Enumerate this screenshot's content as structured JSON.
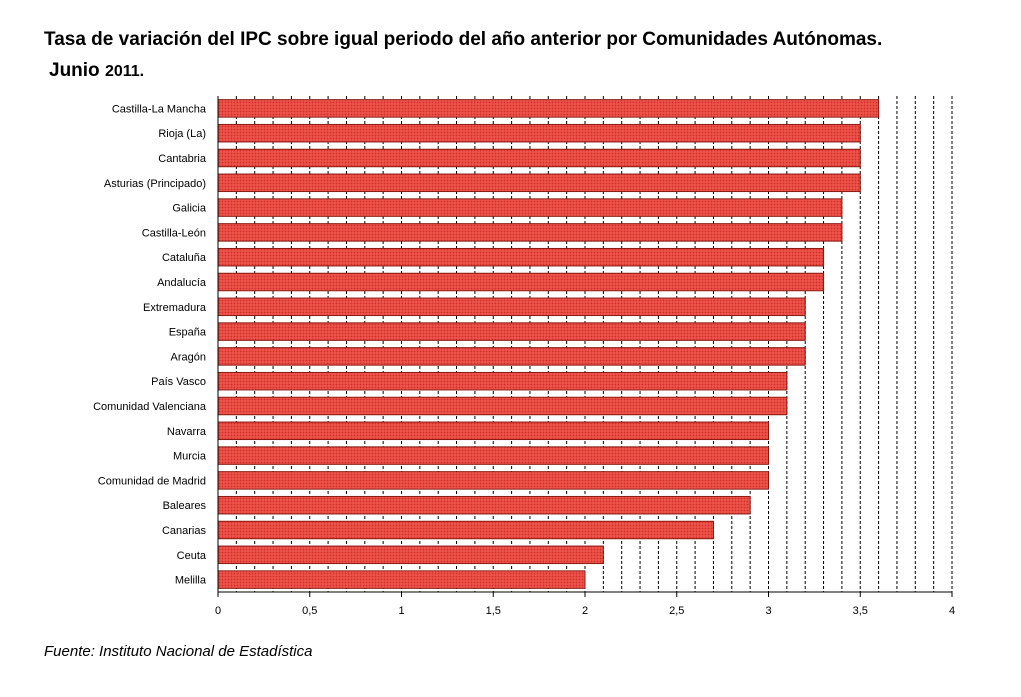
{
  "title": {
    "line1": "Tasa de variación del IPC sobre igual periodo del año anterior por Comunidades Autónomas.",
    "line2_main": "Junio",
    "line2_year": "2011."
  },
  "source": "Fuente: Instituto Nacional de Estadística",
  "chart_data": {
    "type": "bar",
    "orientation": "horizontal",
    "categories": [
      "Castilla-La Mancha",
      "Rioja (La)",
      "Cantabria",
      "Asturias (Principado)",
      "Galicia",
      "Castilla-León",
      "Cataluña",
      "Andalucía",
      "Extremadura",
      "España",
      "Aragón",
      "País Vasco",
      "Comunidad Valenciana",
      "Navarra",
      "Murcia",
      "Comunidad de Madrid",
      "Baleares",
      "Canarias",
      "Ceuta",
      "Melilla"
    ],
    "values": [
      3.6,
      3.5,
      3.5,
      3.5,
      3.4,
      3.4,
      3.3,
      3.3,
      3.2,
      3.2,
      3.2,
      3.1,
      3.1,
      3.0,
      3.0,
      3.0,
      2.9,
      2.7,
      2.1,
      2.0
    ],
    "xlim": [
      0,
      4
    ],
    "ticks": [
      "0",
      "0,5",
      "1",
      "1,5",
      "2",
      "2,5",
      "3",
      "3,5",
      "4"
    ],
    "tick_values": [
      0,
      0.5,
      1,
      1.5,
      2,
      2.5,
      3,
      3.5,
      4
    ],
    "minor_grid_step": 0.1,
    "grid": true,
    "bar_color": "#e8473f",
    "bar_edge_color": "#8b1a14"
  }
}
